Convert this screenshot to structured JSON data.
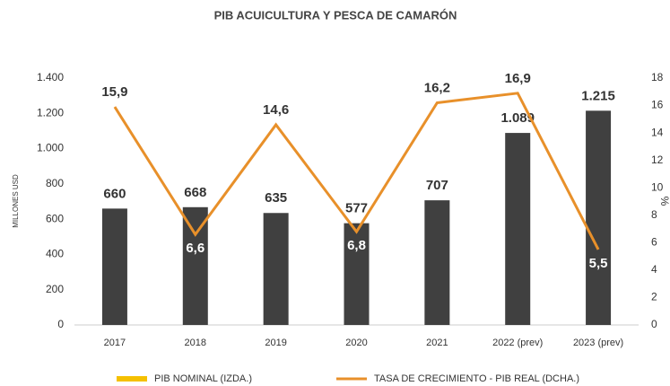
{
  "chart_data": {
    "type": "bar_line",
    "title": "PIB ACUICULTURA Y PESCA DE CAMARÓN",
    "ylabel": "MILLONES USD",
    "y2label": "%",
    "categories": [
      "2017",
      "2018",
      "2019",
      "2020",
      "2021",
      "2022 (prev)",
      "2023 (prev)"
    ],
    "series": [
      {
        "name": "PIB NOMINAL (IZDA.)",
        "type": "bar",
        "color": "#404040",
        "legend_color": "#f5c000",
        "values": [
          660,
          668,
          635,
          577,
          707,
          1089,
          1215
        ],
        "value_labels": [
          "660",
          "668",
          "635",
          "577",
          "707",
          "1.089",
          "1.215"
        ]
      },
      {
        "name": "TASA DE CRECIMIENTO - PIB REAL (DCHA.)",
        "type": "line",
        "axis": "y2",
        "color": "#e8902a",
        "values": [
          15.9,
          6.6,
          14.6,
          6.8,
          16.2,
          16.9,
          5.5
        ],
        "value_labels": [
          "15,9",
          "6,6",
          "14,6",
          "6,8",
          "16,2",
          "16,9",
          "5,5"
        ]
      }
    ],
    "ylim": [
      0,
      1400
    ],
    "yticks": [
      0,
      200,
      400,
      600,
      800,
      {
        "value": 1000,
        "label": "1.000"
      },
      {
        "value": 1200,
        "label": "1.200"
      },
      {
        "value": 1400,
        "label": "1.400"
      }
    ],
    "y2lim": [
      0,
      18
    ],
    "y2ticks": [
      0,
      2,
      4,
      6,
      8,
      10,
      12,
      14,
      16,
      18
    ],
    "legend": "bottom"
  }
}
